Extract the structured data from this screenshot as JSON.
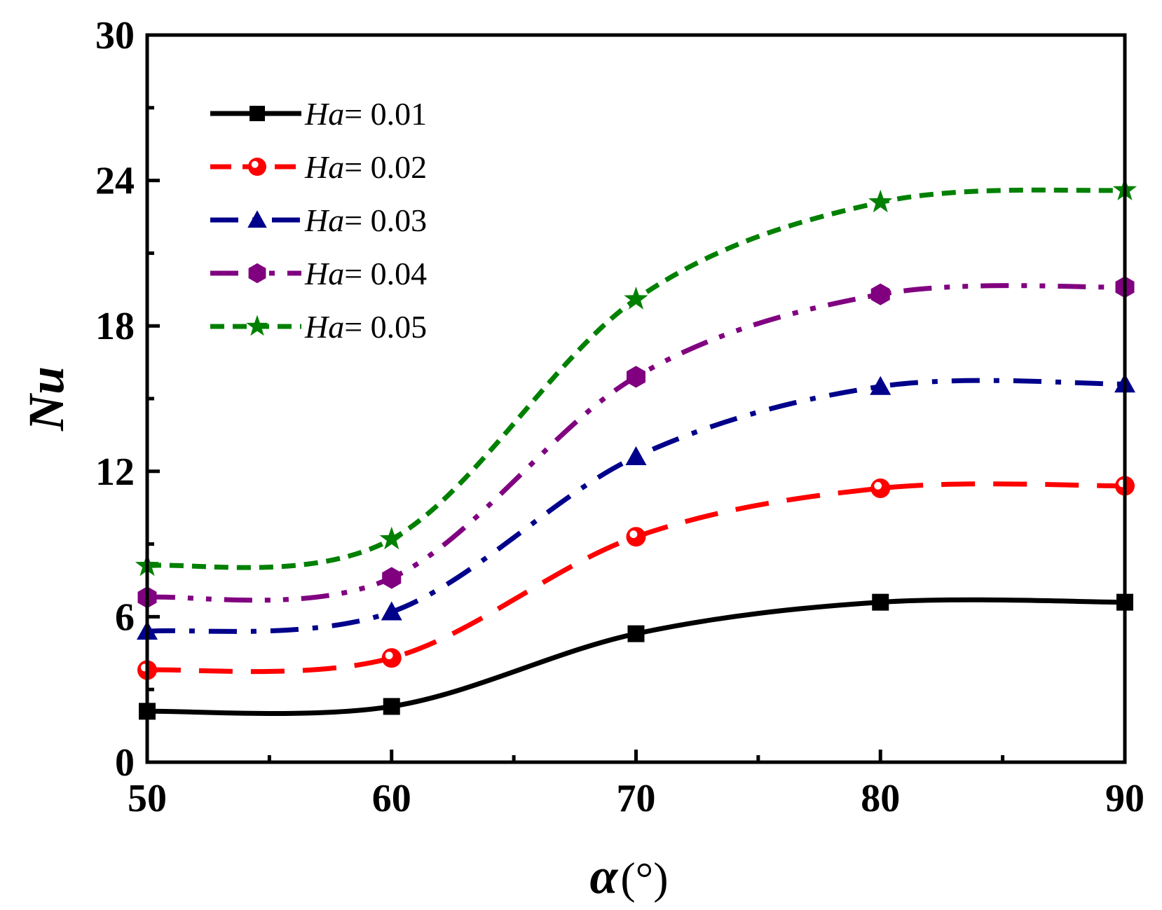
{
  "chart_data": {
    "type": "line",
    "title": "",
    "xlabel": "α",
    "xlabel_unit": "(°)",
    "ylabel": "Nu",
    "xlim": [
      50,
      90
    ],
    "ylim": [
      0,
      30
    ],
    "x": [
      50,
      60,
      70,
      80,
      90
    ],
    "x_ticks": [
      50,
      60,
      70,
      80,
      90
    ],
    "y_ticks": [
      0,
      6,
      12,
      18,
      24,
      30
    ],
    "x_tick_labels": [
      "50",
      "60",
      "70",
      "80",
      "90"
    ],
    "y_tick_labels": [
      "0",
      "6",
      "12",
      "18",
      "24",
      "30"
    ],
    "legend_position": "top-left",
    "series": [
      {
        "name": "Ha= 0.01",
        "label_var": "Ha",
        "label_value": "= 0.01",
        "color": "#000000",
        "dash": "solid",
        "marker": "square",
        "values": [
          2.1,
          2.3,
          5.3,
          6.6,
          6.6
        ]
      },
      {
        "name": "Ha= 0.02",
        "label_var": "Ha",
        "label_value": "= 0.02",
        "color": "#ff0000",
        "dash": "dash",
        "marker": "circle",
        "values": [
          3.8,
          4.3,
          9.3,
          11.3,
          11.4
        ]
      },
      {
        "name": "Ha= 0.03",
        "label_var": "Ha",
        "label_value": "= 0.03",
        "color": "#00008b",
        "dash": "dashdot",
        "marker": "triangle",
        "values": [
          5.4,
          6.2,
          12.6,
          15.5,
          15.6
        ]
      },
      {
        "name": "Ha= 0.04",
        "label_var": "Ha",
        "label_value": "= 0.04",
        "color": "#800080",
        "dash": "dashdotdot",
        "marker": "hexagon",
        "values": [
          6.8,
          7.6,
          15.9,
          19.3,
          19.6
        ]
      },
      {
        "name": "Ha= 0.05",
        "label_var": "Ha",
        "label_value": "= 0.05",
        "color": "#008000",
        "dash": "shortdash",
        "marker": "star",
        "values": [
          8.1,
          9.2,
          19.1,
          23.1,
          23.6
        ]
      }
    ]
  }
}
